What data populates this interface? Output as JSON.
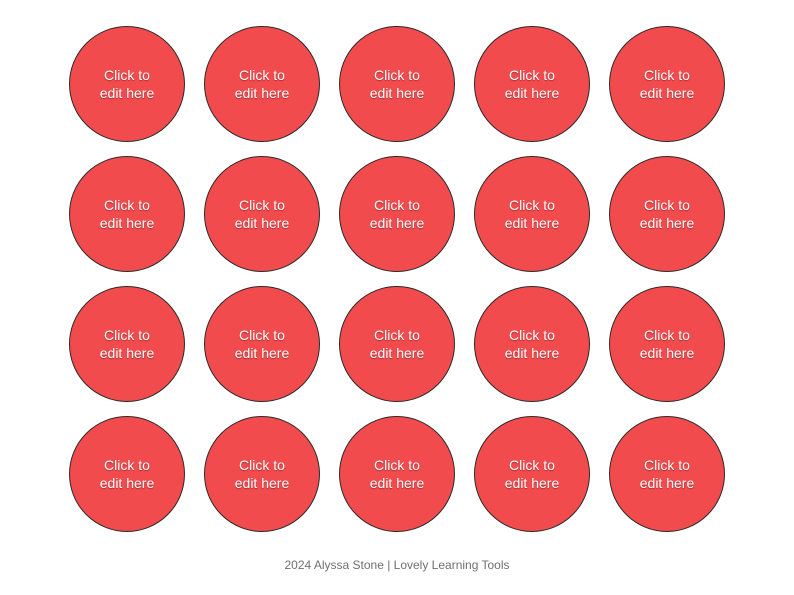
{
  "page": {
    "circle_color": "#f24b4e",
    "circle_border_color": "#2a2a2a",
    "text_color": "#ffffff"
  },
  "circles": [
    {
      "label": "Click to\nedit here"
    },
    {
      "label": "Click to\nedit here"
    },
    {
      "label": "Click to\nedit here"
    },
    {
      "label": "Click to\nedit here"
    },
    {
      "label": "Click to\nedit here"
    },
    {
      "label": "Click to\nedit here"
    },
    {
      "label": "Click to\nedit here"
    },
    {
      "label": "Click to\nedit here"
    },
    {
      "label": "Click to\nedit here"
    },
    {
      "label": "Click to\nedit here"
    },
    {
      "label": "Click to\nedit here"
    },
    {
      "label": "Click to\nedit here"
    },
    {
      "label": "Click to\nedit here"
    },
    {
      "label": "Click to\nedit here"
    },
    {
      "label": "Click to\nedit here"
    },
    {
      "label": "Click to\nedit here"
    },
    {
      "label": "Click to\nedit here"
    },
    {
      "label": "Click to\nedit here"
    },
    {
      "label": "Click to\nedit here"
    },
    {
      "label": "Click to\nedit here"
    }
  ],
  "footer": {
    "text": "2024 Alyssa Stone | Lovely Learning Tools"
  }
}
